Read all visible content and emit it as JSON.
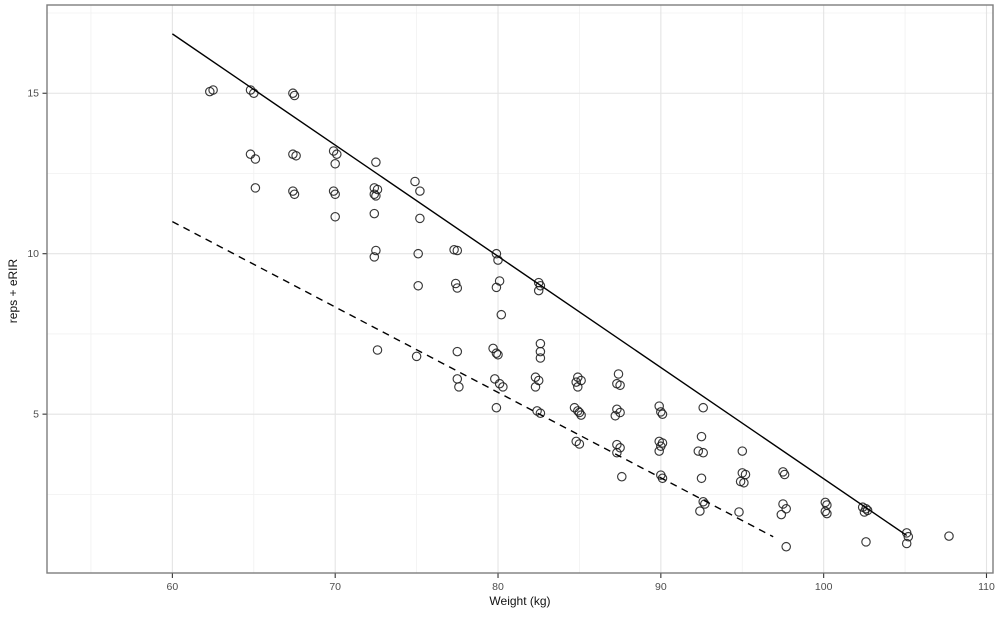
{
  "figure": {
    "kind": "scatter plot with two trend lines (ggplot-style)",
    "background": "#ffffff"
  },
  "chart_data": {
    "type": "scatter",
    "title": "",
    "xlabel": "Weight (kg)",
    "ylabel": "reps + eRIR",
    "xlim": [
      52.3,
      110.4
    ],
    "ylim": [
      0.05,
      17.75
    ],
    "x_ticks": [
      60,
      70,
      80,
      90,
      100,
      110
    ],
    "y_ticks": [
      5,
      10,
      15
    ],
    "x_minor_ticks": [
      55,
      65,
      75,
      85,
      95,
      105
    ],
    "y_minor_ticks": [
      2.5,
      7.5,
      12.5,
      17.5
    ],
    "grid": true,
    "legend_position": "none",
    "marker": "open-circle",
    "points": [
      [
        62.3,
        15.05
      ],
      [
        62.5,
        15.1
      ],
      [
        64.8,
        15.1
      ],
      [
        65.0,
        15.0
      ],
      [
        64.8,
        13.1
      ],
      [
        65.1,
        12.95
      ],
      [
        65.1,
        12.05
      ],
      [
        67.4,
        15.0
      ],
      [
        67.5,
        14.93
      ],
      [
        67.4,
        13.1
      ],
      [
        67.6,
        13.05
      ],
      [
        67.4,
        11.95
      ],
      [
        67.5,
        11.85
      ],
      [
        69.9,
        13.2
      ],
      [
        70.1,
        13.1
      ],
      [
        70.0,
        12.8
      ],
      [
        69.9,
        11.95
      ],
      [
        70.0,
        11.85
      ],
      [
        70.0,
        11.15
      ],
      [
        72.5,
        12.85
      ],
      [
        72.4,
        12.05
      ],
      [
        72.6,
        12.0
      ],
      [
        72.4,
        11.85
      ],
      [
        72.5,
        11.8
      ],
      [
        72.4,
        11.25
      ],
      [
        72.5,
        10.1
      ],
      [
        72.4,
        9.9
      ],
      [
        72.6,
        7.0
      ],
      [
        74.9,
        12.25
      ],
      [
        75.2,
        11.95
      ],
      [
        75.2,
        11.1
      ],
      [
        75.1,
        10.0
      ],
      [
        75.1,
        9.0
      ],
      [
        75.0,
        6.8
      ],
      [
        77.3,
        10.12
      ],
      [
        77.5,
        10.1
      ],
      [
        77.4,
        9.07
      ],
      [
        77.5,
        8.93
      ],
      [
        77.5,
        6.95
      ],
      [
        77.5,
        6.1
      ],
      [
        77.6,
        5.85
      ],
      [
        79.9,
        10.0
      ],
      [
        80.0,
        9.8
      ],
      [
        80.1,
        9.15
      ],
      [
        79.9,
        8.95
      ],
      [
        80.2,
        8.1
      ],
      [
        79.7,
        7.05
      ],
      [
        79.9,
        6.9
      ],
      [
        80.0,
        6.85
      ],
      [
        79.8,
        6.1
      ],
      [
        80.1,
        5.95
      ],
      [
        80.3,
        5.85
      ],
      [
        79.9,
        5.2
      ],
      [
        82.5,
        9.1
      ],
      [
        82.6,
        9.0
      ],
      [
        82.5,
        8.85
      ],
      [
        82.6,
        7.2
      ],
      [
        82.6,
        6.95
      ],
      [
        82.6,
        6.75
      ],
      [
        82.3,
        6.15
      ],
      [
        82.5,
        6.05
      ],
      [
        82.3,
        5.85
      ],
      [
        82.4,
        5.1
      ],
      [
        82.6,
        5.03
      ],
      [
        84.9,
        6.15
      ],
      [
        85.1,
        6.05
      ],
      [
        84.8,
        6.0
      ],
      [
        84.9,
        5.85
      ],
      [
        84.7,
        5.2
      ],
      [
        84.9,
        5.1
      ],
      [
        85.0,
        5.05
      ],
      [
        85.1,
        4.97
      ],
      [
        84.8,
        4.15
      ],
      [
        85.0,
        4.07
      ],
      [
        87.4,
        6.25
      ],
      [
        87.3,
        5.95
      ],
      [
        87.5,
        5.9
      ],
      [
        87.3,
        5.15
      ],
      [
        87.5,
        5.05
      ],
      [
        87.2,
        4.95
      ],
      [
        87.3,
        4.05
      ],
      [
        87.5,
        3.95
      ],
      [
        87.3,
        3.8
      ],
      [
        87.6,
        3.05
      ],
      [
        89.9,
        5.25
      ],
      [
        90.0,
        5.07
      ],
      [
        90.1,
        5.0
      ],
      [
        89.9,
        4.15
      ],
      [
        90.1,
        4.1
      ],
      [
        90.0,
        4.0
      ],
      [
        89.9,
        3.85
      ],
      [
        90.0,
        3.1
      ],
      [
        90.1,
        3.0
      ],
      [
        92.6,
        5.2
      ],
      [
        92.5,
        4.3
      ],
      [
        92.3,
        3.85
      ],
      [
        92.6,
        3.8
      ],
      [
        92.5,
        3.0
      ],
      [
        92.6,
        2.27
      ],
      [
        92.7,
        2.2
      ],
      [
        92.4,
        1.98
      ],
      [
        95.0,
        3.85
      ],
      [
        95.0,
        3.17
      ],
      [
        95.2,
        3.12
      ],
      [
        94.9,
        2.9
      ],
      [
        95.1,
        2.86
      ],
      [
        94.8,
        1.95
      ],
      [
        97.5,
        3.2
      ],
      [
        97.6,
        3.12
      ],
      [
        97.5,
        2.2
      ],
      [
        97.7,
        2.05
      ],
      [
        97.4,
        1.87
      ],
      [
        97.7,
        0.87
      ],
      [
        100.1,
        2.25
      ],
      [
        100.2,
        2.17
      ],
      [
        100.1,
        1.97
      ],
      [
        100.2,
        1.9
      ],
      [
        102.4,
        2.1
      ],
      [
        102.6,
        2.05
      ],
      [
        102.7,
        2.0
      ],
      [
        102.5,
        1.95
      ],
      [
        102.6,
        1.02
      ],
      [
        105.1,
        1.3
      ],
      [
        105.2,
        1.18
      ],
      [
        105.1,
        0.97
      ],
      [
        107.7,
        1.2
      ]
    ],
    "lines": [
      {
        "name": "upper-trend-solid",
        "style": "solid",
        "x1": 60,
        "y1": 16.85,
        "x2": 105.1,
        "y2": 1.22
      },
      {
        "name": "lower-trend-dashed",
        "style": "dashed",
        "x1": 60,
        "y1": 11.0,
        "x2": 96.9,
        "y2": 1.18
      }
    ],
    "colors": {
      "point_stroke": "#1c1c1c",
      "line_stroke": "#000000",
      "grid_major": "#e4e4e4",
      "grid_minor": "#f1f1f1",
      "panel_border": "#7d7d7d",
      "tick_mark": "#333333",
      "tick_label": "#4d4d4d",
      "axis_title": "#111111"
    }
  }
}
